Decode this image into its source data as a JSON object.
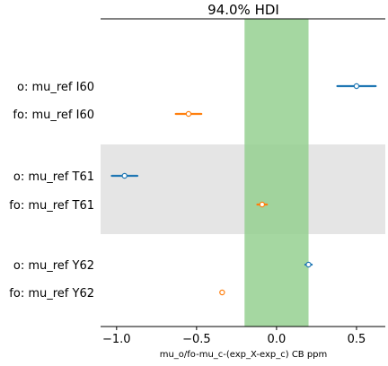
{
  "chart_data": {
    "type": "forest",
    "title": "94.0% HDI",
    "xlabel": "mu_o/fo-mu_c-(exp_X-exp_c) CB ppm",
    "ylabel": "",
    "xlim": [
      -1.1,
      0.68
    ],
    "xticks": [
      -1.0,
      -0.5,
      0.0,
      0.5
    ],
    "xtick_labels": [
      "−1.0",
      "−0.5",
      "0.0",
      "0.5"
    ],
    "hdi_band": [
      -0.2,
      0.2
    ],
    "hdi_band_color": "#95d091",
    "shaded_groups": [
      "T61"
    ],
    "shade_color": "#e5e5e5",
    "rows": [
      {
        "label": "o: mu_ref I60",
        "group": "I60",
        "series": "o",
        "mean": 0.5,
        "hdi": [
          0.38,
          0.62
        ],
        "color": "#1f77b4"
      },
      {
        "label": "fo: mu_ref I60",
        "group": "I60",
        "series": "fo",
        "mean": -0.55,
        "hdi": [
          -0.63,
          -0.47
        ],
        "color": "#ff7f0e"
      },
      {
        "label": "o: mu_ref T61",
        "group": "T61",
        "series": "o",
        "mean": -0.95,
        "hdi": [
          -1.03,
          -0.87
        ],
        "color": "#1f77b4"
      },
      {
        "label": "fo: mu_ref T61",
        "group": "T61",
        "series": "fo",
        "mean": -0.09,
        "hdi": [
          -0.12,
          -0.06
        ],
        "color": "#ff7f0e"
      },
      {
        "label": "o: mu_ref Y62",
        "group": "Y62",
        "series": "o",
        "mean": 0.2,
        "hdi": [
          0.18,
          0.22
        ],
        "color": "#1f77b4"
      },
      {
        "label": "fo: mu_ref Y62",
        "group": "Y62",
        "series": "fo",
        "mean": -0.34,
        "hdi": [
          -0.35,
          -0.33
        ],
        "color": "#ff7f0e"
      }
    ]
  }
}
